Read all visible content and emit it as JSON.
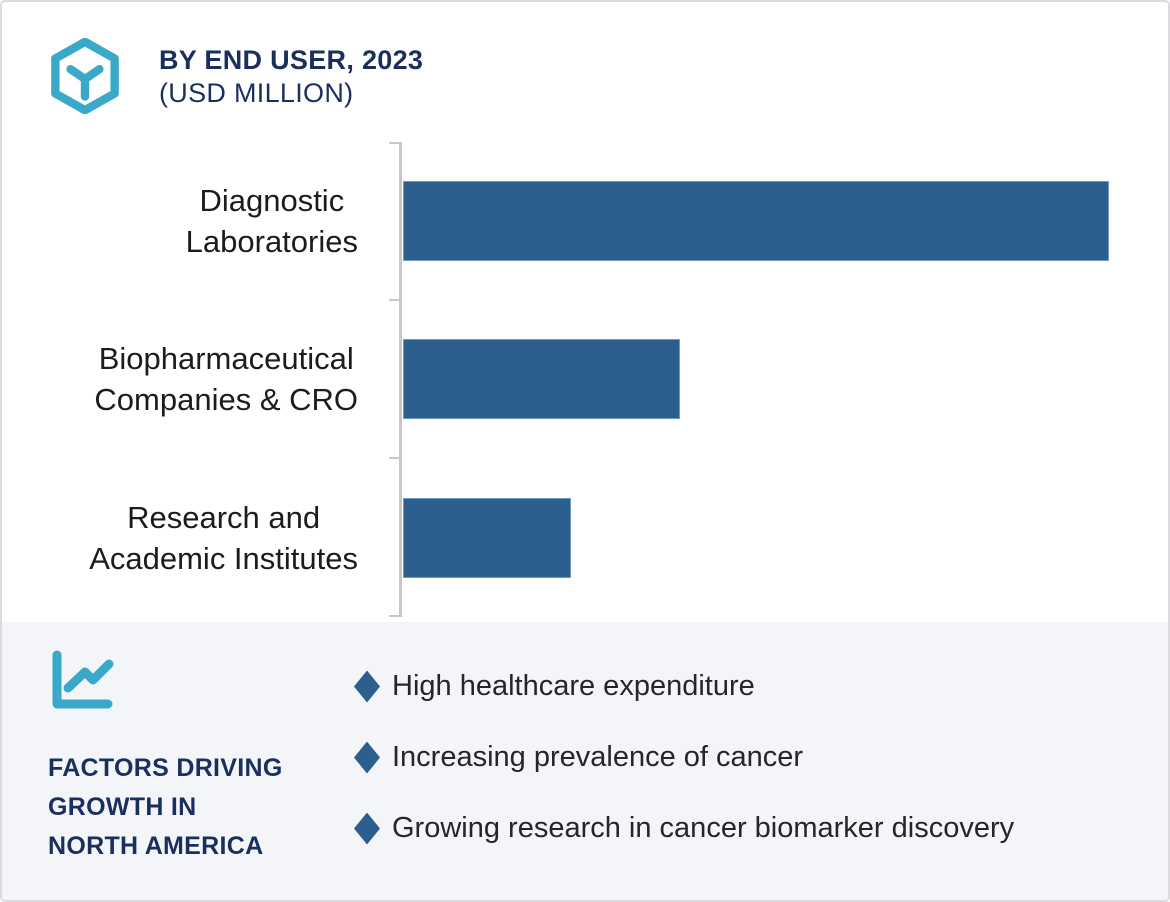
{
  "header": {
    "title": "BY END USER, 2023",
    "subtitle": "(USD MILLION)"
  },
  "chart_data": {
    "type": "bar",
    "orientation": "horizontal",
    "title": "BY END USER, 2023 (USD MILLION)",
    "xlabel": "",
    "ylabel": "",
    "categories": [
      {
        "label": "Diagnostic Laboratories",
        "lines": [
          "Diagnostic",
          "Laboratories"
        ]
      },
      {
        "label": "Biopharmaceutical Companies & CRO",
        "lines": [
          "Biopharmaceutical",
          "Companies & CRO"
        ]
      },
      {
        "label": "Research and Academic Institutes",
        "lines": [
          "Research and",
          "Academic Institutes"
        ]
      }
    ],
    "values": [
      100,
      39.3,
      23.8
    ],
    "axis_max": 106,
    "value_labels_shown": false,
    "note": "No numeric data labels or x-axis ticks are visible; values are relative bar lengths with the longest bar normalized to 100.",
    "grid": false,
    "legend_position": "none",
    "bar_color": "#2d5f8e",
    "axis_color": "#c7c7c7"
  },
  "factors": {
    "heading_lines": [
      "FACTORS DRIVING",
      "GROWTH IN",
      "NORTH AMERICA"
    ],
    "items": [
      "High healthcare expenditure",
      "Increasing prevalence of cancer",
      "Growing research in cancer biomarker discovery"
    ]
  },
  "icons": {
    "logo": "hexagon-cube-logo",
    "factors": "line-chart-icon",
    "bullet": "diamond-bullet"
  },
  "colors": {
    "teal": "#3aa9c9",
    "navy": "#1b2f5e",
    "bar_blue": "#2d5f8e",
    "panel_background": "#f3f5f9",
    "axis_gray": "#c7c7c7",
    "body_text": "#262626"
  }
}
